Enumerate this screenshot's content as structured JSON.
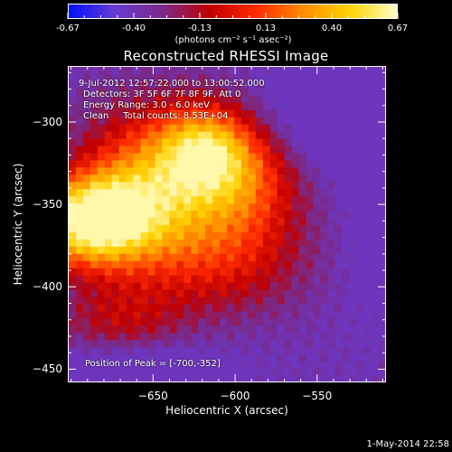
{
  "colorbar": {
    "ticks": [
      "-0.67",
      "-0.40",
      "-0.13",
      "0.13",
      "0.40",
      "0.67"
    ],
    "unit": "(photons cm⁻² s⁻¹ asec⁻²)"
  },
  "info": {
    "time": "9-Jul-2012 12:57:22.000 to 13:00:52.000",
    "detectors": "Detectors: 3F 5F 6F 7F 8F 9F, Att 0",
    "energy": "Energy Range: 3.0 - 6.0 keV",
    "clean": "Clean     Total counts: 8.53E+04",
    "peak": "Position of Peak = [-700,-352]"
  },
  "footer": {
    "date": "1-May-2014 22:58"
  },
  "colors": {
    "background": "#000000",
    "colormap": [
      "#0010ff",
      "#6a3bd0",
      "#7a2a8a",
      "#c00000",
      "#ff2a00",
      "#ff8c00",
      "#ffd200",
      "#ffffc8"
    ]
  },
  "chart_data": {
    "type": "heatmap",
    "title": "Reconstructed RHESSI Image",
    "xlabel": "Heliocentric X (arcsec)",
    "ylabel": "Heliocentric Y (arcsec)",
    "xlim": [
      -702,
      -508
    ],
    "ylim": [
      -458,
      -266
    ],
    "x_ticks": [
      -650,
      -600,
      -550
    ],
    "y_ticks": [
      -300,
      -350,
      -400,
      -450
    ],
    "x_tick_labels": [
      "−650",
      "−600",
      "−550"
    ],
    "y_tick_labels": [
      "−300",
      "−350",
      "−400",
      "−450"
    ],
    "colorbar_range": [
      -0.67,
      0.67
    ],
    "peak_position": [
      -700,
      -352
    ],
    "grid": false
  }
}
